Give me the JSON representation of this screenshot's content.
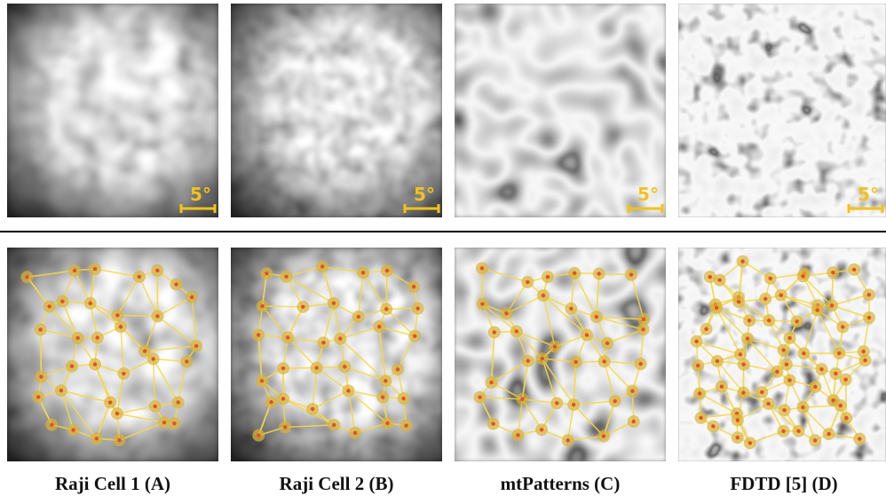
{
  "panels": [
    {
      "caption": "Raji Cell 1 (A)",
      "scale_label": "5°"
    },
    {
      "caption": "Raji Cell 2 (B)",
      "scale_label": "5°"
    },
    {
      "caption": "mtPatterns (C)",
      "scale_label": "5°"
    },
    {
      "caption": "FDTD [5] (D)",
      "scale_label": "5°"
    }
  ]
}
